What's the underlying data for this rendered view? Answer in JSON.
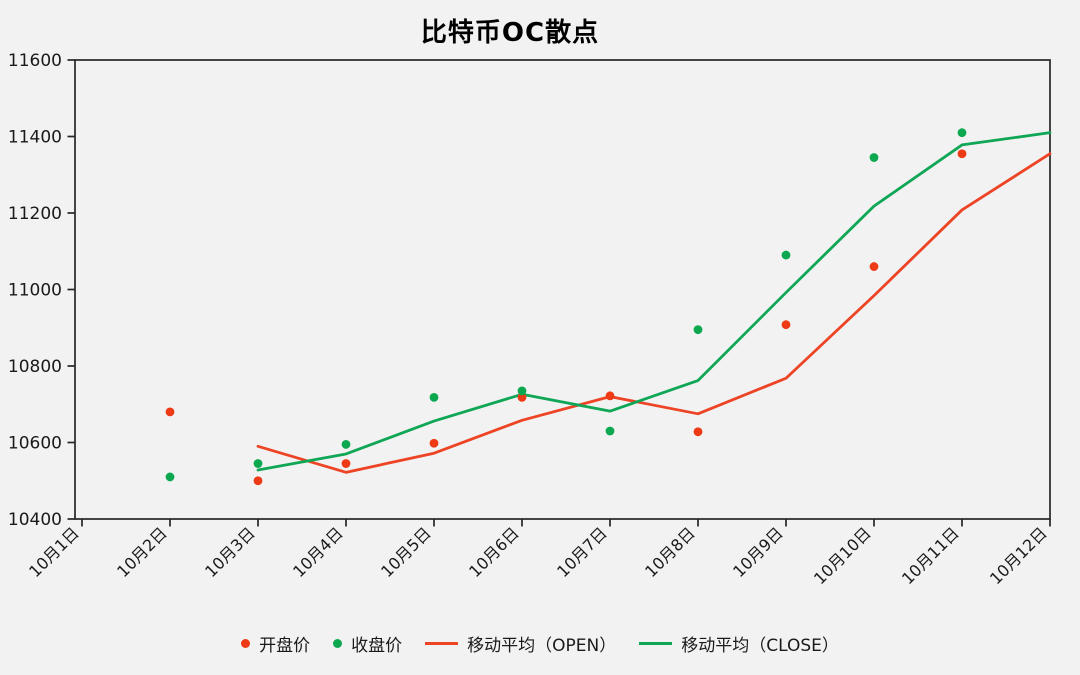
{
  "page": {
    "title": "比特币OC散点"
  },
  "colors": {
    "open": "#ee3a15",
    "close": "#0ca84f",
    "ma_open": "#ec4424",
    "ma_close": "#0fa656",
    "axis": "#262626",
    "tick_text": "#1a1a1a",
    "background": "#f2f2f2"
  },
  "chart_data": {
    "type": "scatter",
    "title": "比特币OC散点",
    "categories": [
      "10月1日",
      "10月2日",
      "10月3日",
      "10月4日",
      "10月5日",
      "10月6日",
      "10月7日",
      "10月8日",
      "10月9日",
      "10月10日",
      "10月11日",
      "10月12日"
    ],
    "xlabel": "",
    "ylabel": "",
    "ylim": [
      10400,
      11600
    ],
    "y_ticks": [
      10400,
      10600,
      10800,
      11000,
      11200,
      11400,
      11600
    ],
    "grid": false,
    "legend_position": "bottom",
    "series": [
      {
        "id": "open-scatter",
        "name": "开盘价",
        "type": "scatter",
        "color": "#ee3a15",
        "x": [
          "10月2日",
          "10月3日",
          "10月4日",
          "10月5日",
          "10月6日",
          "10月7日",
          "10月8日",
          "10月9日",
          "10月10日",
          "10月11日"
        ],
        "values": [
          10680,
          10500,
          10545,
          10598,
          10718,
          10722,
          10628,
          10908,
          11060,
          11355
        ]
      },
      {
        "id": "close-scatter",
        "name": "收盘价",
        "type": "scatter",
        "color": "#0ca84f",
        "x": [
          "10月2日",
          "10月3日",
          "10月4日",
          "10月5日",
          "10月6日",
          "10月7日",
          "10月8日",
          "10月9日",
          "10月10日",
          "10月11日"
        ],
        "values": [
          10510,
          10545,
          10595,
          10718,
          10735,
          10630,
          10895,
          11090,
          11345,
          11410
        ]
      },
      {
        "id": "ma-open-line",
        "name": "移动平均（OPEN）",
        "type": "line",
        "color": "#ec4424",
        "x": [
          "10月3日",
          "10月4日",
          "10月5日",
          "10月6日",
          "10月7日",
          "10月8日",
          "10月9日",
          "10月10日",
          "10月11日",
          "10月12日"
        ],
        "values": [
          10590,
          10522,
          10572,
          10658,
          10720,
          10675,
          10768,
          10984,
          11208,
          11355
        ]
      },
      {
        "id": "ma-close-line",
        "name": "移动平均（CLOSE）",
        "type": "line",
        "color": "#0fa656",
        "x": [
          "10月3日",
          "10月4日",
          "10月5日",
          "10月6日",
          "10月7日",
          "10月8日",
          "10月9日",
          "10月10日",
          "10月11日",
          "10月12日"
        ],
        "values": [
          10528,
          10570,
          10656,
          10726,
          10682,
          10762,
          10992,
          11218,
          11378,
          11410
        ]
      }
    ]
  }
}
